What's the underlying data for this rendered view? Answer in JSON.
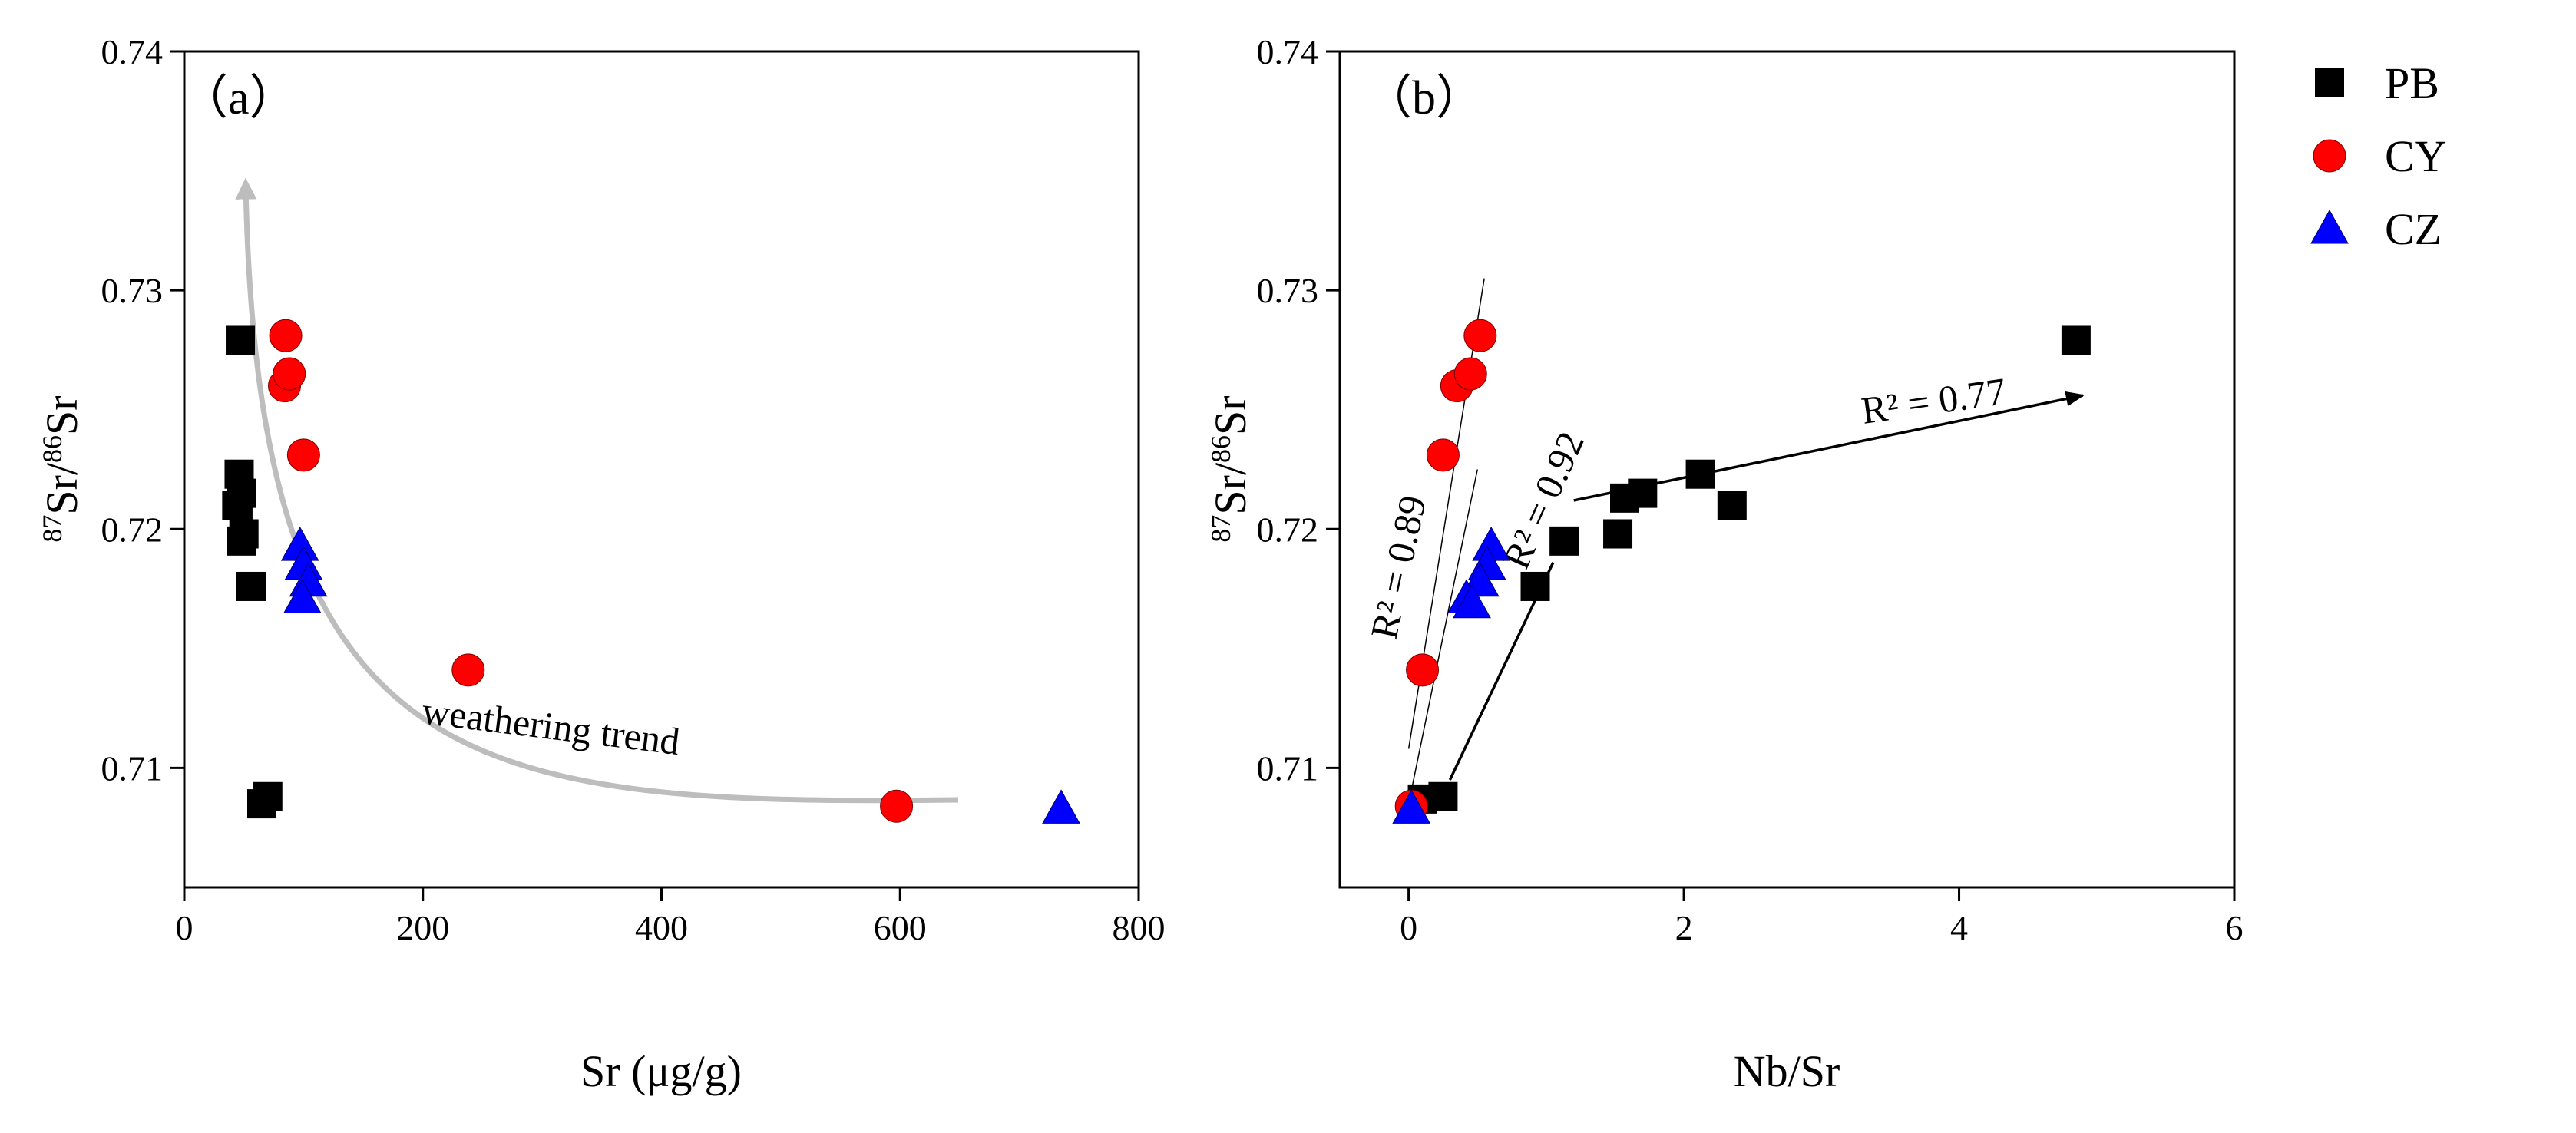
{
  "chart_data": [
    {
      "type": "scatter",
      "panel_label": "（a）",
      "xlabel": "Sr (μg/g)",
      "ylabel": {
        "iso_top": "87",
        "sym_top": "Sr/",
        "iso_bottom": "86",
        "sym_bottom": "Sr"
      },
      "xlim": [
        0,
        800
      ],
      "ylim": [
        0.705,
        0.74
      ],
      "x_ticks": [
        0,
        200,
        400,
        600,
        800
      ],
      "y_ticks": [
        0.71,
        0.72,
        0.73,
        0.74
      ],
      "x_tick_labels": [
        "0",
        "200",
        "400",
        "600",
        "800"
      ],
      "y_tick_labels": [
        "0.71",
        "0.72",
        "0.73",
        "0.74"
      ],
      "series": [
        {
          "name": "PB",
          "marker": "square",
          "color": "#000000",
          "x": [
            47,
            46,
            48,
            45,
            44,
            50,
            48,
            56,
            65,
            70
          ],
          "y": [
            0.7279,
            0.7223,
            0.7215,
            0.721,
            0.721,
            0.7198,
            0.7195,
            0.7176,
            0.7085,
            0.7088
          ]
        },
        {
          "name": "CY",
          "marker": "circle",
          "color": "#ff0000",
          "x": [
            85,
            84,
            88,
            100,
            238,
            597
          ],
          "y": [
            0.7281,
            0.726,
            0.7265,
            0.7231,
            0.7141,
            0.7084
          ]
        },
        {
          "name": "CZ",
          "marker": "triangle",
          "color": "#0000ff",
          "x": [
            97,
            100,
            104,
            99,
            735
          ],
          "y": [
            0.7193,
            0.7185,
            0.7178,
            0.7171,
            0.7083
          ]
        }
      ],
      "trend_annotation": "weathering trend"
    },
    {
      "type": "scatter",
      "panel_label": "（b）",
      "xlabel": "Nb/Sr",
      "ylabel": {
        "iso_top": "87",
        "sym_top": "Sr/",
        "iso_bottom": "86",
        "sym_bottom": "Sr"
      },
      "xlim": [
        -0.5,
        6
      ],
      "ylim": [
        0.705,
        0.74
      ],
      "x_ticks": [
        0,
        2,
        4,
        6
      ],
      "y_ticks": [
        0.71,
        0.72,
        0.73,
        0.74
      ],
      "x_tick_labels": [
        "0",
        "2",
        "4",
        "6"
      ],
      "y_tick_labels": [
        "0.71",
        "0.72",
        "0.73",
        "0.74"
      ],
      "series": [
        {
          "name": "PB",
          "marker": "square",
          "color": "#000000",
          "x": [
            4.85,
            2.12,
            1.7,
            1.57,
            2.35,
            1.52,
            1.13,
            0.92,
            0.1,
            0.25
          ],
          "y": [
            0.7279,
            0.7223,
            0.7215,
            0.7213,
            0.721,
            0.7198,
            0.7195,
            0.7176,
            0.7087,
            0.7088
          ]
        },
        {
          "name": "CY",
          "marker": "circle",
          "color": "#ff0000",
          "x": [
            0.52,
            0.35,
            0.45,
            0.25,
            0.1,
            0.02
          ],
          "y": [
            0.7281,
            0.726,
            0.7265,
            0.7231,
            0.7141,
            0.7084
          ]
        },
        {
          "name": "CZ",
          "marker": "triangle",
          "color": "#0000ff",
          "x": [
            0.6,
            0.57,
            0.52,
            0.42,
            0.46,
            0.02
          ],
          "y": [
            0.7193,
            0.7185,
            0.7178,
            0.7171,
            0.7169,
            0.7083
          ]
        }
      ],
      "legend": [
        "PB",
        "CY",
        "CZ"
      ],
      "regression_labels": [
        {
          "text": "R² = 0.89",
          "series": "CY"
        },
        {
          "text": "R² = 0.92",
          "series": "CZ"
        },
        {
          "text": "R² = 0.77",
          "series": "PB"
        }
      ]
    }
  ]
}
